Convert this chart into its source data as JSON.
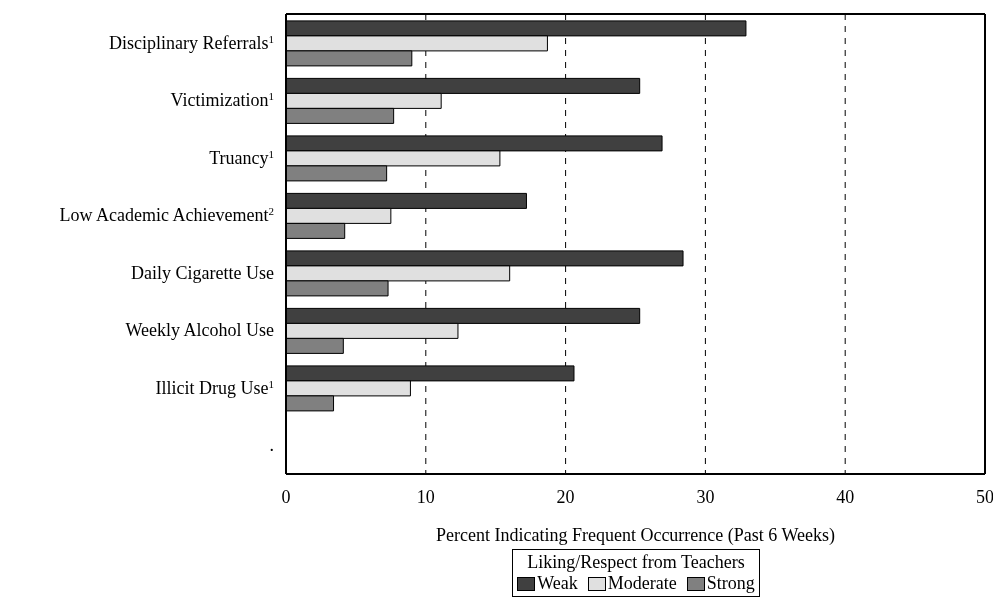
{
  "chart_data": {
    "type": "bar",
    "orientation": "horizontal",
    "categories": [
      "Disciplinary Referrals$^{1}$",
      "Victimization$^{1}$",
      "Truancy$^{1}$",
      "Low Academic Achievement$^{2}$",
      "Daily Cigarette Use",
      "Weekly Alcohol Use",
      "Illicit Drug Use$^{1}$",
      "."
    ],
    "series": [
      {
        "name": "Weak",
        "color": "#404040",
        "values": [
          32.9,
          25.3,
          26.9,
          17.2,
          28.4,
          25.3,
          20.6,
          null
        ]
      },
      {
        "name": "Moderate",
        "color": "#e0e0e0",
        "values": [
          18.7,
          11.1,
          15.3,
          7.5,
          16.0,
          12.3,
          8.9,
          null
        ]
      },
      {
        "name": "Strong",
        "color": "#808080",
        "values": [
          9.0,
          7.7,
          7.2,
          4.2,
          7.3,
          4.1,
          3.4,
          null
        ]
      }
    ],
    "xlabel": "Percent Indicating Frequent Occurrence (Past 6 Weeks)",
    "legend_title": "Liking/Respect from Teachers",
    "legend": "bottom",
    "grid": "x",
    "line_style": "dashed",
    "xlim": [
      0,
      50
    ],
    "xticks": [
      0,
      10,
      20,
      30,
      40,
      50
    ]
  }
}
